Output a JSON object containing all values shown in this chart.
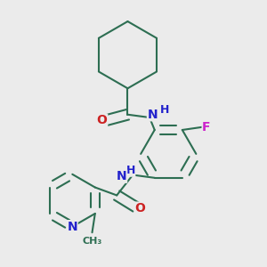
{
  "background_color": "#ebebeb",
  "bond_color": "#2d6e52",
  "bond_width": 1.5,
  "atom_colors": {
    "C": "#2d6e52",
    "N": "#2222cc",
    "O": "#cc2222",
    "F": "#cc22cc",
    "H": "#2222cc"
  },
  "font_size": 9
}
